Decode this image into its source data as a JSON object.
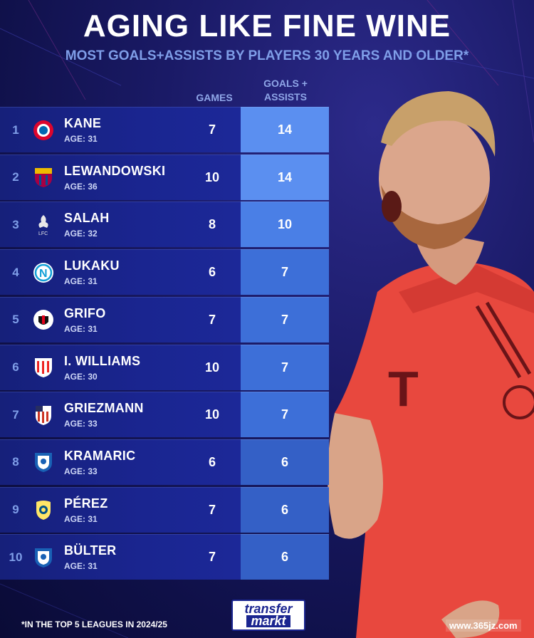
{
  "title": "AGING LIKE FINE WINE",
  "subtitle": "MOST GOALS+ASSISTS BY PLAYERS 30 YEARS AND OLDER*",
  "columns": {
    "games": "GAMES",
    "ga_line1": "GOALS +",
    "ga_line2": "ASSISTS"
  },
  "rows": [
    {
      "rank": "1",
      "name": "KANE",
      "age": "AGE: 31",
      "games": "7",
      "ga": "14",
      "club_icon": "bayern-crest-icon",
      "ga_color": "#5b8ff0"
    },
    {
      "rank": "2",
      "name": "LEWANDOWSKI",
      "age": "AGE: 36",
      "games": "10",
      "ga": "14",
      "club_icon": "barcelona-crest-icon",
      "ga_color": "#5b8ff0"
    },
    {
      "rank": "3",
      "name": "SALAH",
      "age": "AGE: 32",
      "games": "8",
      "ga": "10",
      "club_icon": "liverpool-crest-icon",
      "ga_color": "#4a7fe6"
    },
    {
      "rank": "4",
      "name": "LUKAKU",
      "age": "AGE: 31",
      "games": "6",
      "ga": "7",
      "club_icon": "napoli-crest-icon",
      "ga_color": "#3d6fd8"
    },
    {
      "rank": "5",
      "name": "GRIFO",
      "age": "AGE: 31",
      "games": "7",
      "ga": "7",
      "club_icon": "freiburg-crest-icon",
      "ga_color": "#3d6fd8"
    },
    {
      "rank": "6",
      "name": "I. WILLIAMS",
      "age": "AGE: 30",
      "games": "10",
      "ga": "7",
      "club_icon": "athletic-bilbao-crest-icon",
      "ga_color": "#3d6fd8"
    },
    {
      "rank": "7",
      "name": "GRIEZMANN",
      "age": "AGE: 33",
      "games": "10",
      "ga": "7",
      "club_icon": "atletico-madrid-crest-icon",
      "ga_color": "#3d6fd8"
    },
    {
      "rank": "8",
      "name": "KRAMARIC",
      "age": "AGE: 33",
      "games": "6",
      "ga": "6",
      "club_icon": "hoffenheim-crest-icon",
      "ga_color": "#3460c6"
    },
    {
      "rank": "9",
      "name": "PÉREZ",
      "age": "AGE: 31",
      "games": "7",
      "ga": "6",
      "club_icon": "villarreal-crest-icon",
      "ga_color": "#3460c6"
    },
    {
      "rank": "10",
      "name": "BÜLTER",
      "age": "AGE: 31",
      "games": "7",
      "ga": "6",
      "club_icon": "hoffenheim-crest-icon",
      "ga_color": "#3460c6"
    }
  ],
  "footnote": "*IN THE TOP 5 LEAGUES IN 2024/25",
  "brand": {
    "line1": "transfer",
    "line2": "markt"
  },
  "watermark": "www.365jz.com"
}
